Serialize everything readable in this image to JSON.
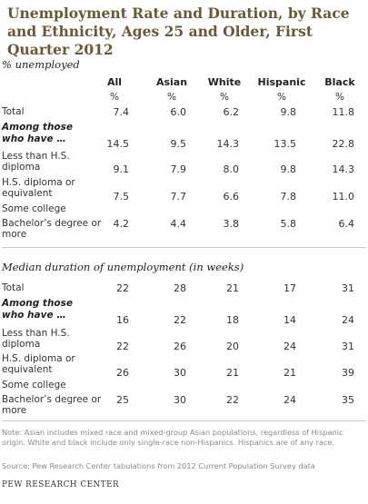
{
  "chart_data": {
    "type": "table",
    "title": "Unemployment Rate and Duration, by Race and Ethnicity, Ages 25 and Older, First Quarter 2012",
    "columns": [
      "All",
      "Asian",
      "White",
      "Hispanic",
      "Black"
    ],
    "unit_row": [
      "%",
      "%",
      "%",
      "%",
      "%"
    ],
    "group_label": "Among those who have …",
    "sections": [
      {
        "label": "% unemployed",
        "rows": [
          {
            "label": "Total",
            "values": [
              "7.4",
              "6.0",
              "6.2",
              "9.8",
              "11.8"
            ]
          },
          {
            "label": "Less than H.S. diploma",
            "values": [
              "14.5",
              "9.5",
              "14.3",
              "13.5",
              "22.8"
            ]
          },
          {
            "label": "H.S. diploma or equivalent",
            "values": [
              "9.1",
              "7.9",
              "8.0",
              "9.8",
              "14.3"
            ]
          },
          {
            "label": "Some college",
            "values": [
              "7.5",
              "7.7",
              "6.6",
              "7.8",
              "11.0"
            ]
          },
          {
            "label": "Bachelor’s degree or more",
            "values": [
              "4.2",
              "4.4",
              "3.8",
              "5.8",
              "6.4"
            ]
          }
        ]
      },
      {
        "label": "Median duration of unemployment (in weeks)",
        "rows": [
          {
            "label": "Total",
            "values": [
              "22",
              "28",
              "21",
              "17",
              "31"
            ]
          },
          {
            "label": "Less than H.S. diploma",
            "values": [
              "16",
              "22",
              "18",
              "14",
              "24"
            ]
          },
          {
            "label": "H.S. diploma or equivalent",
            "values": [
              "22",
              "26",
              "20",
              "24",
              "31"
            ]
          },
          {
            "label": "Some college",
            "values": [
              "26",
              "30",
              "21",
              "21",
              "39"
            ]
          },
          {
            "label": "Bachelor’s degree or more",
            "values": [
              "25",
              "30",
              "22",
              "24",
              "35"
            ]
          }
        ]
      }
    ]
  },
  "note": "Note: Asian includes mixed race and mixed-group Asian populations, regardless of Hispanic origin. White and black include only single-race non-Hispanics. Hispanics are of any race.",
  "source": "Source: Pew Research Center tabulations from 2012 Current Population Survey data",
  "org": "PEW RESEARCH CENTER",
  "colors": {
    "title": "#6b5836",
    "rule": "#cccccc",
    "note": "#8a8a8a"
  }
}
